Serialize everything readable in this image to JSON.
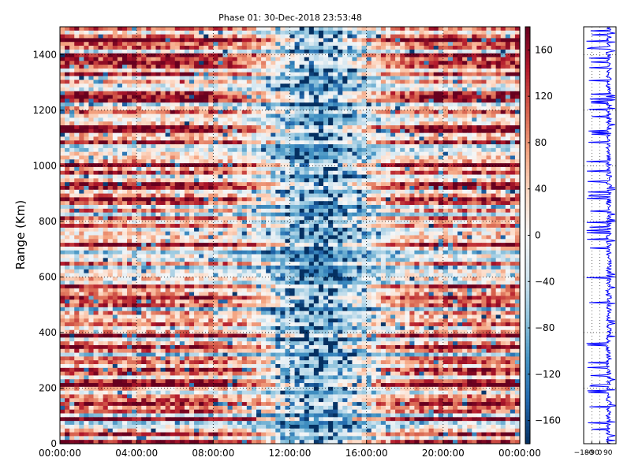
{
  "chart_data": [
    {
      "type": "heatmap",
      "title": "Phase 01: 30-Dec-2018 23:53:48",
      "ylabel": "Range (Km)",
      "xlabel": "",
      "x_tick_labels": [
        "00:00:00",
        "04:00:00",
        "08:00:00",
        "12:00:00",
        "16:00:00",
        "20:00:00",
        "00:00:00"
      ],
      "xlim_hours": [
        0,
        24
      ],
      "y_ticks": [
        0,
        200,
        400,
        600,
        800,
        1000,
        1200,
        1400
      ],
      "ylim": [
        0,
        1500
      ],
      "colormap": "RdBu_r",
      "colorbar": {
        "ticks": [
          160,
          120,
          80,
          40,
          0,
          -40,
          -80,
          -120,
          -160
        ],
        "range": [
          -180,
          180
        ]
      },
      "grid": true
    },
    {
      "type": "line",
      "series_color": "#0000ff",
      "x_tick_labels": [
        "-180",
        "-90",
        "0",
        "90"
      ],
      "xlim": [
        -180,
        180
      ],
      "ylim": [
        0,
        1500
      ],
      "grid": true
    }
  ]
}
